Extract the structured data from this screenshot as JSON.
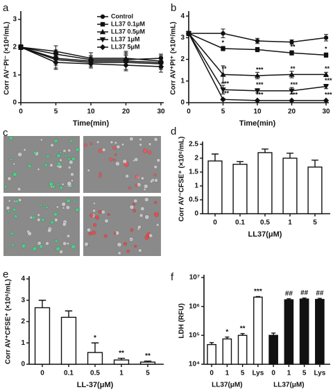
{
  "chart_data": [
    {
      "type": "line",
      "panel_label": "a",
      "x_label": "Time(min)",
      "y_label": "Corr AV⁻PI⁻ (×10⁶/mL)",
      "categories": [
        "0",
        "5",
        "10",
        "20",
        "30"
      ],
      "ylim": [
        0,
        3.2
      ],
      "yticks": [
        0,
        1,
        2,
        3
      ],
      "legend": "upper right",
      "series": [
        {
          "name": "Control",
          "color": "#111111",
          "marker": "circle",
          "values": [
            2.0,
            1.75,
            1.55,
            1.55,
            1.6
          ],
          "errors": [
            0.08,
            0.15,
            0.15,
            0.2,
            0.15
          ]
        },
        {
          "name": "LL37 0.1μM",
          "color": "#111111",
          "marker": "square",
          "values": [
            2.0,
            1.6,
            1.5,
            1.5,
            1.45
          ],
          "errors": [
            0.08,
            0.25,
            0.2,
            0.3,
            0.2
          ]
        },
        {
          "name": "LL37 0.5μM",
          "color": "#111111",
          "marker": "triangle",
          "values": [
            2.0,
            1.85,
            1.6,
            1.6,
            1.5
          ],
          "errors": [
            0.08,
            0.2,
            0.2,
            0.25,
            0.2
          ]
        },
        {
          "name": "LL37 1μM",
          "color": "#111111",
          "marker": "triangle-down",
          "values": [
            2.0,
            1.55,
            1.45,
            1.45,
            1.4
          ],
          "errors": [
            0.08,
            0.3,
            0.2,
            0.25,
            0.2
          ]
        },
        {
          "name": "LL37 5μM",
          "color": "#111111",
          "marker": "diamond",
          "values": [
            2.0,
            1.45,
            1.4,
            1.35,
            1.3
          ],
          "errors": [
            0.08,
            0.25,
            0.15,
            0.2,
            0.2
          ]
        }
      ]
    },
    {
      "type": "line",
      "panel_label": "b",
      "x_label": "Time(min)",
      "y_label": "Corr AV⁺PI⁺ (×10⁶/mL)",
      "categories": [
        "0",
        "5",
        "10",
        "20",
        "30"
      ],
      "ylim": [
        0,
        4.1
      ],
      "yticks": [
        0,
        1,
        2,
        3,
        4
      ],
      "series": [
        {
          "marker": "circle",
          "color": "#111111",
          "values": [
            3.2,
            3.2,
            2.85,
            2.8,
            3.0
          ],
          "errors": [
            0.1,
            0.2,
            0.12,
            0.1,
            0.15
          ],
          "value_labels": [
            null,
            null,
            null,
            null,
            null
          ]
        },
        {
          "marker": "square",
          "color": "#111111",
          "values": [
            3.2,
            2.5,
            2.45,
            2.3,
            2.2
          ],
          "errors": [
            0.1,
            0.1,
            0.1,
            0.1,
            0.1
          ],
          "value_labels": [
            null,
            "*",
            null,
            "**",
            "*"
          ]
        },
        {
          "marker": "triangle",
          "color": "#111111",
          "values": [
            3.2,
            1.3,
            1.25,
            1.3,
            1.3
          ],
          "errors": [
            0.1,
            0.4,
            0.15,
            0.15,
            0.1
          ],
          "value_labels": [
            null,
            "**",
            "***",
            "**",
            "**"
          ]
        },
        {
          "marker": "triangle-down",
          "color": "#111111",
          "values": [
            3.2,
            0.6,
            0.55,
            0.55,
            0.75
          ],
          "errors": [
            0.1,
            0.2,
            0.1,
            0.15,
            0.1
          ],
          "value_labels": [
            null,
            "***",
            "***",
            "***",
            "***"
          ]
        },
        {
          "marker": "diamond",
          "color": "#111111",
          "values": [
            3.2,
            0.15,
            0.1,
            0.1,
            0.1
          ],
          "errors": [
            0.1,
            0.05,
            0.03,
            0.03,
            0.03
          ],
          "value_labels": [
            null,
            "***",
            "***",
            "***",
            "***"
          ]
        }
      ]
    },
    {
      "type": "bar",
      "panel_label": "d",
      "x_label": "LL37(μM)",
      "y_label": "Corr AV⁻CFSE⁺ (×10⁶/mL)",
      "categories": [
        "0",
        "0.1",
        "0.5",
        "1",
        "5"
      ],
      "values": [
        1.9,
        1.78,
        2.2,
        2.0,
        1.68
      ],
      "errors": [
        0.25,
        0.1,
        0.13,
        0.18,
        0.25
      ],
      "colors": [
        "#ffffff",
        "#ffffff",
        "#ffffff",
        "#ffffff",
        "#ffffff"
      ],
      "ylim": [
        0,
        2.5
      ],
      "yticks": [
        0,
        0.5,
        1,
        1.5,
        2,
        2.5
      ]
    },
    {
      "type": "bar",
      "panel_label": "e",
      "x_label": "LL-37(μM)",
      "y_label": "Corr AV⁺CFSE⁺ (×10⁶/mL)",
      "categories": [
        "0",
        "0.1",
        "0.5",
        "1",
        "5"
      ],
      "values": [
        2.65,
        2.2,
        0.55,
        0.2,
        0.1
      ],
      "errors": [
        0.35,
        0.3,
        0.45,
        0.08,
        0.05
      ],
      "value_labels": [
        null,
        null,
        "*",
        "**",
        "**"
      ],
      "colors": [
        "#ffffff",
        "#ffffff",
        "#ffffff",
        "#ffffff",
        "#ffffff"
      ],
      "ylim": [
        0,
        4
      ],
      "yticks": [
        0,
        1,
        2,
        3,
        4
      ]
    },
    {
      "type": "bar",
      "panel_label": "f",
      "y_label": "LDH (RFU)",
      "log_scale": true,
      "categories": [
        "0",
        "1",
        "5",
        "Lys",
        "0",
        "1",
        "5",
        "Lys"
      ],
      "values": [
        48000,
        75000,
        100000,
        2100000,
        100000,
        1700000,
        1800000,
        1750000
      ],
      "errors": [
        8000,
        12000,
        15000,
        100000,
        20000,
        150000,
        150000,
        150000
      ],
      "value_labels": [
        null,
        "*",
        "**",
        "***",
        null,
        "##",
        "##",
        "##"
      ],
      "colors": [
        "#ffffff",
        "#ffffff",
        "#ffffff",
        "#ffffff",
        "#111111",
        "#111111",
        "#111111",
        "#111111"
      ],
      "group_labels": [
        "LL37(μM)",
        "LL37(μM)"
      ],
      "ylim": [
        10000,
        10000000
      ],
      "yticks": [
        {
          "value": 10000,
          "label": "10⁴"
        },
        {
          "value": 100000,
          "label": "10⁵"
        },
        {
          "value": 1000000,
          "label": "10⁶"
        },
        {
          "value": 10000000,
          "label": "10⁷"
        }
      ]
    }
  ],
  "image_panel": {
    "panel_label": "c"
  }
}
